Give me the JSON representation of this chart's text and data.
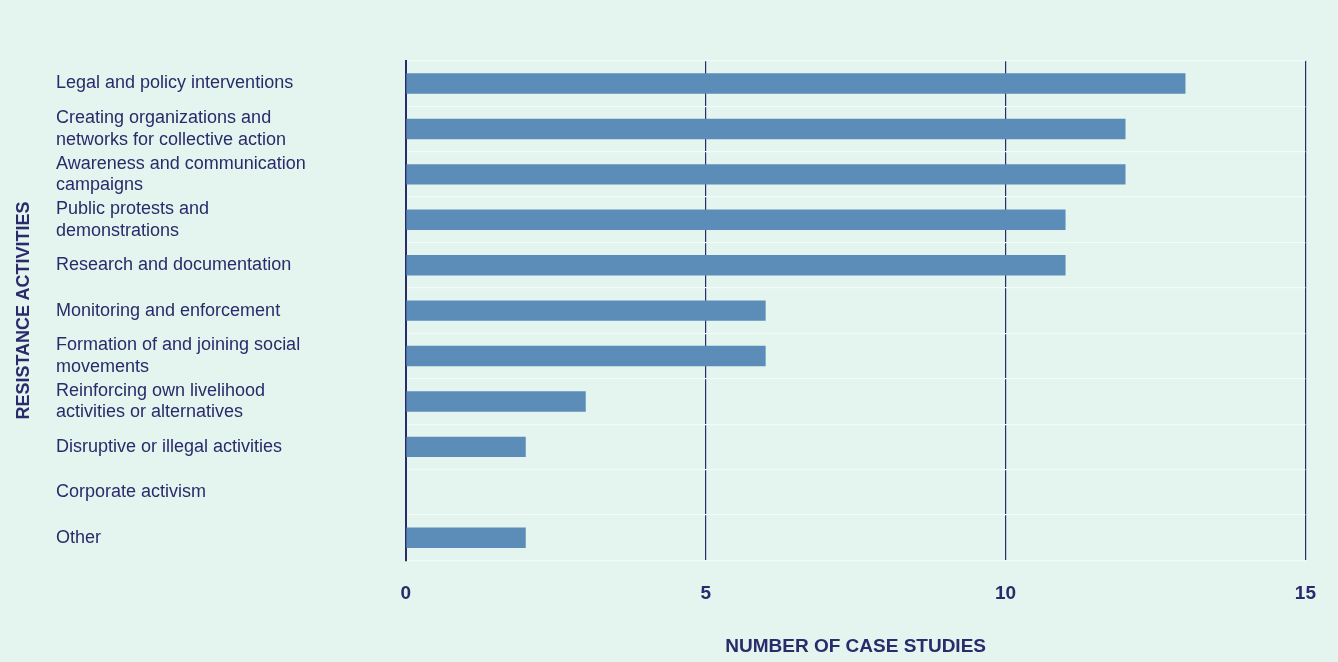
{
  "chart_data": {
    "type": "bar",
    "orientation": "horizontal",
    "xlabel": "NUMBER OF CASE STUDIES",
    "ylabel": "RESISTANCE ACTIVITIES",
    "categories": [
      "Legal and policy interventions",
      "Creating organizations and networks for collective action",
      "Awareness and communication campaigns",
      "Public protests and demonstrations",
      "Research and documentation",
      "Monitoring and enforcement",
      "Formation of and joining social movements",
      "Reinforcing own livelihood activities or alternatives",
      "Disruptive or illegal activities",
      "Corporate activism",
      "Other"
    ],
    "values": [
      13,
      12,
      12,
      11,
      11,
      6,
      6,
      3,
      2,
      0,
      2
    ],
    "color": "#5b8db8",
    "xlim": [
      0,
      15
    ],
    "xticks": [
      0,
      5,
      10,
      15
    ],
    "grid": true,
    "legend": false
  }
}
